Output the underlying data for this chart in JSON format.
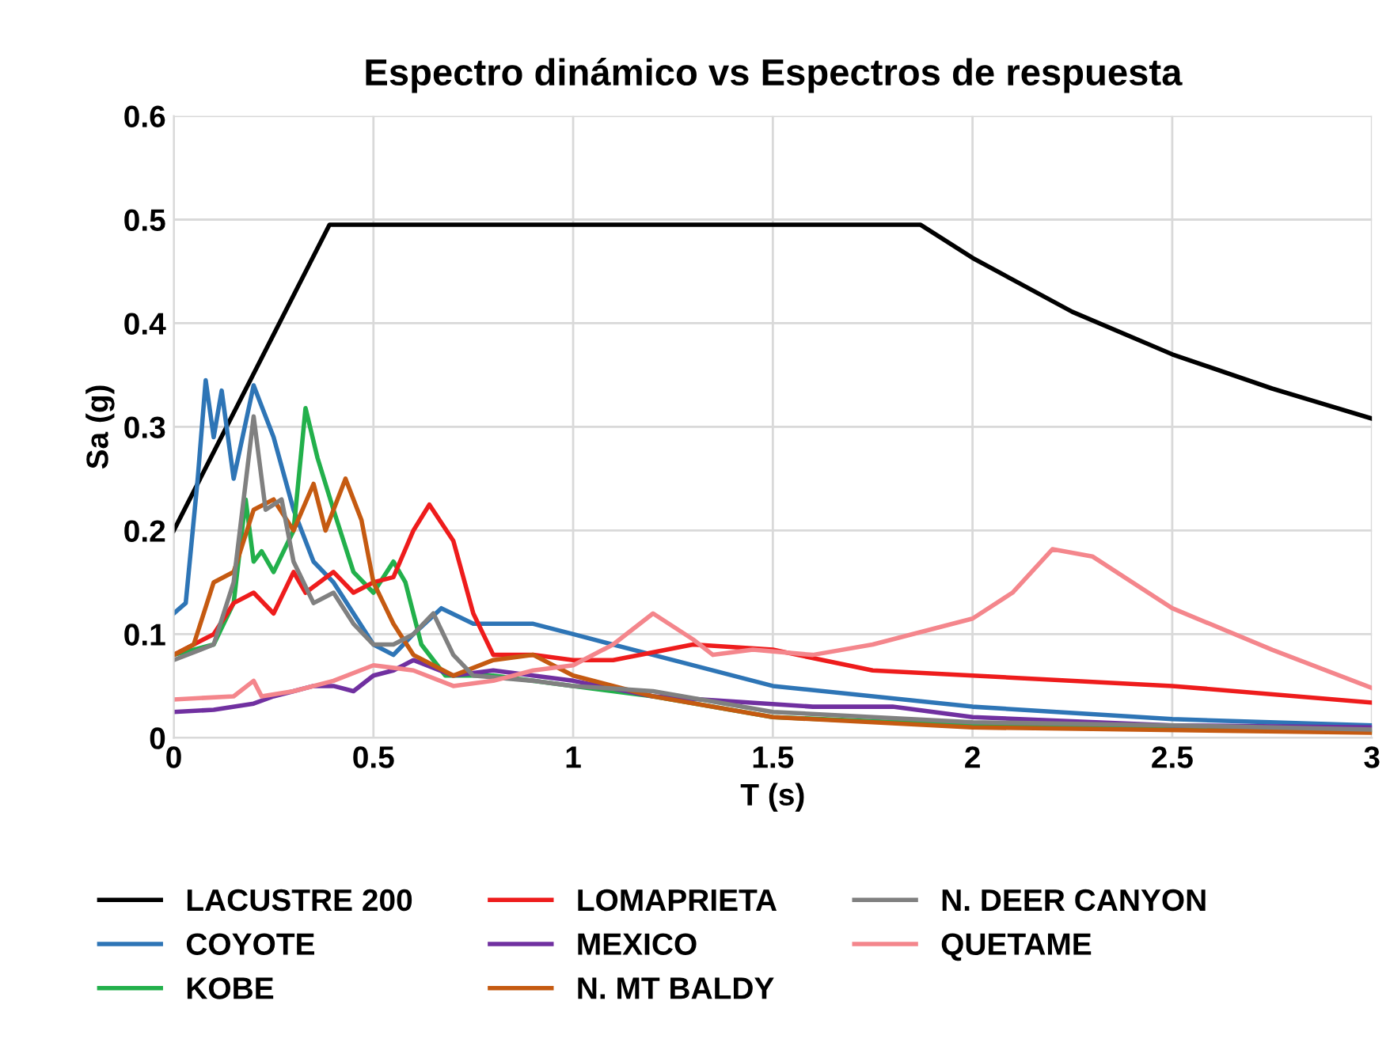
{
  "chart_data": {
    "type": "line",
    "title": "Espectro dinámico vs Espectros de respuesta",
    "xlabel": "T (s)",
    "ylabel": "Sa (g)",
    "xlim": [
      0,
      3
    ],
    "xticks": [
      0,
      0.5,
      1,
      1.5,
      2,
      2.5,
      3
    ],
    "ylim": [
      0,
      0.6
    ],
    "yticks": [
      0,
      0.1,
      0.2,
      0.3,
      0.4,
      0.5,
      0.6
    ],
    "grid": true,
    "legend": "bottom",
    "marker": "none",
    "line_style": "solid",
    "series": [
      {
        "name": "LACUSTRE 200",
        "color": "#000000",
        "x": [
          0,
          0.39,
          1.87,
          2.0,
          2.25,
          2.5,
          2.75,
          3.0
        ],
        "values": [
          0.2,
          0.495,
          0.495,
          0.463,
          0.411,
          0.37,
          0.337,
          0.308
        ]
      },
      {
        "name": "COYOTE",
        "color": "#2e75b6",
        "x": [
          0,
          0.03,
          0.06,
          0.08,
          0.1,
          0.12,
          0.15,
          0.2,
          0.25,
          0.3,
          0.35,
          0.4,
          0.45,
          0.5,
          0.55,
          0.6,
          0.67,
          0.75,
          0.9,
          1.0,
          1.2,
          1.5,
          2.0,
          2.5,
          3.0
        ],
        "values": [
          0.12,
          0.13,
          0.25,
          0.345,
          0.29,
          0.335,
          0.25,
          0.34,
          0.29,
          0.22,
          0.17,
          0.15,
          0.12,
          0.09,
          0.08,
          0.1,
          0.125,
          0.11,
          0.11,
          0.1,
          0.08,
          0.05,
          0.03,
          0.018,
          0.012
        ]
      },
      {
        "name": "KOBE",
        "color": "#22b04b",
        "x": [
          0,
          0.1,
          0.15,
          0.18,
          0.2,
          0.22,
          0.25,
          0.3,
          0.33,
          0.36,
          0.4,
          0.45,
          0.5,
          0.55,
          0.58,
          0.62,
          0.68,
          0.8,
          1.0,
          1.2,
          1.5,
          2.0,
          3.0
        ],
        "values": [
          0.08,
          0.09,
          0.13,
          0.23,
          0.17,
          0.18,
          0.16,
          0.2,
          0.318,
          0.27,
          0.22,
          0.16,
          0.14,
          0.17,
          0.15,
          0.09,
          0.06,
          0.06,
          0.05,
          0.04,
          0.02,
          0.012,
          0.006
        ]
      },
      {
        "name": "LOMAPRIETA",
        "color": "#ee1c1c",
        "x": [
          0,
          0.1,
          0.15,
          0.2,
          0.25,
          0.3,
          0.33,
          0.4,
          0.45,
          0.5,
          0.55,
          0.6,
          0.64,
          0.7,
          0.75,
          0.8,
          0.9,
          1.0,
          1.1,
          1.3,
          1.5,
          1.75,
          2.0,
          2.5,
          3.0
        ],
        "values": [
          0.08,
          0.1,
          0.13,
          0.14,
          0.12,
          0.16,
          0.14,
          0.16,
          0.14,
          0.15,
          0.155,
          0.2,
          0.225,
          0.19,
          0.12,
          0.08,
          0.08,
          0.075,
          0.075,
          0.09,
          0.085,
          0.065,
          0.06,
          0.05,
          0.034
        ]
      },
      {
        "name": "MEXICO",
        "color": "#7030a0",
        "x": [
          0,
          0.1,
          0.2,
          0.25,
          0.3,
          0.35,
          0.4,
          0.45,
          0.5,
          0.55,
          0.6,
          0.7,
          0.8,
          0.9,
          1.0,
          1.2,
          1.4,
          1.6,
          1.8,
          2.0,
          2.5,
          3.0
        ],
        "values": [
          0.025,
          0.027,
          0.033,
          0.04,
          0.045,
          0.05,
          0.05,
          0.045,
          0.06,
          0.065,
          0.075,
          0.06,
          0.065,
          0.06,
          0.055,
          0.04,
          0.035,
          0.03,
          0.03,
          0.02,
          0.012,
          0.01
        ]
      },
      {
        "name": "N. MT BALDY",
        "color": "#c55a11",
        "x": [
          0,
          0.05,
          0.1,
          0.15,
          0.2,
          0.25,
          0.3,
          0.35,
          0.38,
          0.43,
          0.47,
          0.5,
          0.55,
          0.6,
          0.65,
          0.7,
          0.8,
          0.9,
          1.0,
          1.2,
          1.5,
          2.0,
          3.0
        ],
        "values": [
          0.08,
          0.09,
          0.15,
          0.16,
          0.22,
          0.23,
          0.2,
          0.245,
          0.2,
          0.25,
          0.21,
          0.15,
          0.11,
          0.08,
          0.07,
          0.06,
          0.075,
          0.08,
          0.06,
          0.04,
          0.02,
          0.01,
          0.005
        ]
      },
      {
        "name": "N. DEER CANYON",
        "color": "#808080",
        "x": [
          0,
          0.1,
          0.15,
          0.2,
          0.23,
          0.27,
          0.3,
          0.35,
          0.4,
          0.45,
          0.5,
          0.55,
          0.6,
          0.65,
          0.7,
          0.75,
          0.9,
          1.0,
          1.2,
          1.5,
          2.0,
          2.5,
          3.0
        ],
        "values": [
          0.075,
          0.09,
          0.15,
          0.31,
          0.22,
          0.23,
          0.17,
          0.13,
          0.14,
          0.11,
          0.09,
          0.09,
          0.1,
          0.12,
          0.08,
          0.06,
          0.055,
          0.05,
          0.045,
          0.025,
          0.015,
          0.012,
          0.008
        ]
      },
      {
        "name": "QUETAME",
        "color": "#f4868c",
        "x": [
          0,
          0.15,
          0.2,
          0.22,
          0.3,
          0.4,
          0.5,
          0.6,
          0.7,
          0.8,
          0.9,
          1.0,
          1.1,
          1.2,
          1.3,
          1.35,
          1.45,
          1.6,
          1.75,
          2.0,
          2.1,
          2.2,
          2.3,
          2.5,
          2.75,
          3.0
        ],
        "values": [
          0.037,
          0.04,
          0.055,
          0.04,
          0.045,
          0.055,
          0.07,
          0.065,
          0.05,
          0.055,
          0.065,
          0.07,
          0.09,
          0.12,
          0.095,
          0.08,
          0.085,
          0.08,
          0.09,
          0.115,
          0.14,
          0.182,
          0.175,
          0.125,
          0.085,
          0.048
        ]
      }
    ]
  }
}
